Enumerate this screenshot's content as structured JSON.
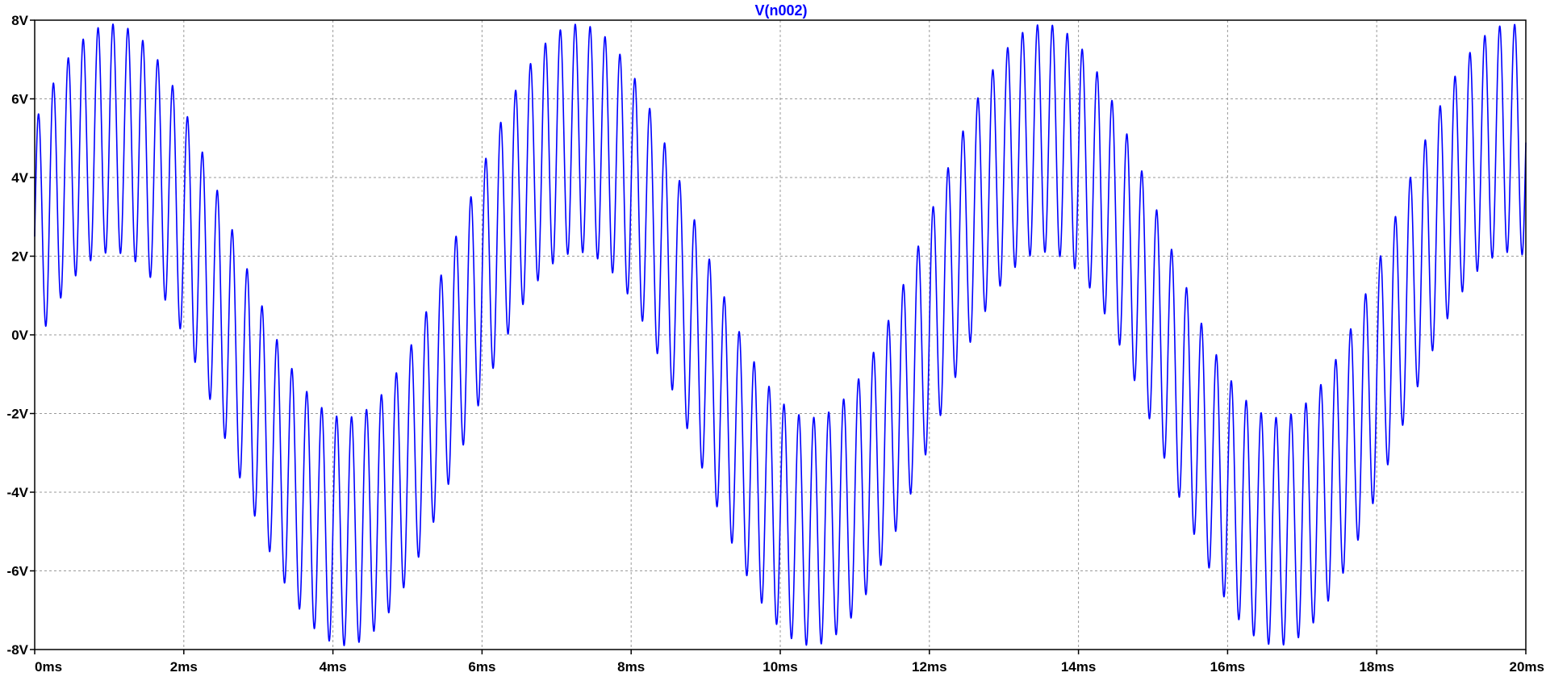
{
  "chart_data": {
    "type": "line",
    "title": "V(n002)",
    "xlabel": "",
    "ylabel": "",
    "x_unit": "ms",
    "y_unit": "V",
    "xlim": [
      0,
      20
    ],
    "ylim": [
      -8,
      8
    ],
    "x_ticks": [
      "0ms",
      "2ms",
      "4ms",
      "6ms",
      "8ms",
      "10ms",
      "12ms",
      "14ms",
      "16ms",
      "18ms",
      "20ms"
    ],
    "y_ticks": [
      "8V",
      "6V",
      "4V",
      "2V",
      "0V",
      "-2V",
      "-4V",
      "-6V",
      "-8V"
    ],
    "grid": true,
    "series": [
      {
        "name": "V(n002)",
        "color": "#0000ff",
        "components": [
          {
            "amplitude_V": 5.0,
            "frequency_Hz": 160,
            "phase_deg": 30
          },
          {
            "amplitude_V": 2.9,
            "frequency_Hz": 5000,
            "phase_deg": 0
          }
        ]
      }
    ]
  }
}
